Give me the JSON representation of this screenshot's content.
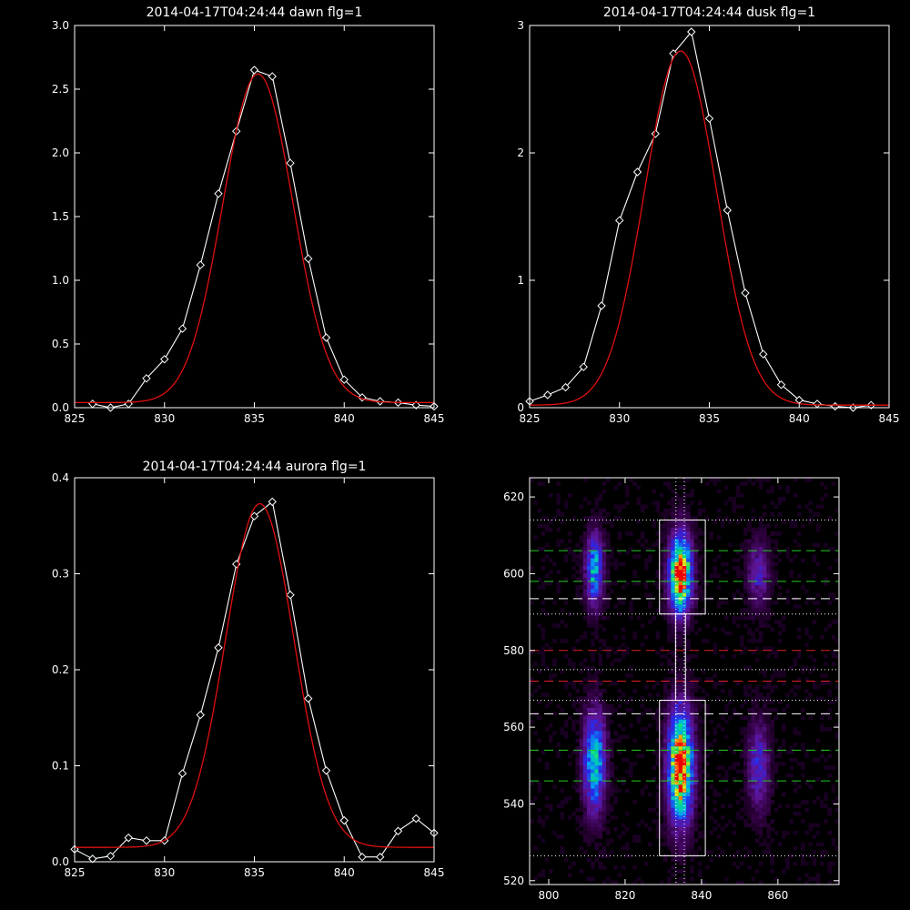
{
  "chart_data": [
    {
      "panel": "dawn",
      "type": "line",
      "title": "2014-04-17T04:24:44 dawn flg=1",
      "xlim": [
        825,
        845
      ],
      "ylim": [
        0,
        3.0
      ],
      "x_ticks": [
        825,
        830,
        835,
        840,
        845
      ],
      "x_tick_labels": [
        "825",
        "830",
        "835",
        "840",
        "845"
      ],
      "y_ticks": [
        0,
        0.5,
        1.0,
        1.5,
        2.0,
        2.5,
        3.0
      ],
      "y_tick_labels": [
        "0.0",
        "0.5",
        "1.0",
        "1.5",
        "2.0",
        "2.5",
        "3.0"
      ],
      "series": [
        {
          "style": "observed",
          "color": "#ffffff",
          "marker": "diamond",
          "x": [
            826,
            827,
            828,
            829,
            830,
            831,
            832,
            833,
            834,
            835,
            836,
            837,
            838,
            839,
            840,
            841,
            842,
            843,
            844,
            845
          ],
          "y": [
            0.03,
            0.0,
            0.03,
            0.23,
            0.38,
            0.62,
            1.12,
            1.68,
            2.17,
            2.65,
            2.6,
            1.92,
            1.17,
            0.55,
            0.22,
            0.08,
            0.05,
            0.04,
            0.02,
            0.01
          ]
        },
        {
          "style": "gaussian-fit",
          "color": "#e01010",
          "amplitude": 2.58,
          "center": 835.2,
          "sigma": 1.95,
          "offset": 0.04
        }
      ]
    },
    {
      "panel": "dusk",
      "type": "line",
      "title": "2014-04-17T04:24:44 dusk flg=1",
      "xlim": [
        825,
        845
      ],
      "ylim": [
        0,
        3
      ],
      "x_ticks": [
        825,
        830,
        835,
        840,
        845
      ],
      "x_tick_labels": [
        "825",
        "830",
        "835",
        "840",
        "845"
      ],
      "y_ticks": [
        0,
        1,
        2,
        3
      ],
      "y_tick_labels": [
        "0",
        "1",
        "2",
        "3"
      ],
      "series": [
        {
          "style": "observed",
          "color": "#ffffff",
          "marker": "diamond",
          "x": [
            825,
            826,
            827,
            828,
            829,
            830,
            831,
            832,
            833,
            834,
            835,
            836,
            837,
            838,
            839,
            840,
            841,
            842,
            843,
            844
          ],
          "y": [
            0.05,
            0.1,
            0.16,
            0.32,
            0.8,
            1.47,
            1.85,
            2.15,
            2.78,
            2.95,
            2.27,
            1.55,
            0.9,
            0.42,
            0.18,
            0.06,
            0.03,
            0.01,
            0.0,
            0.02
          ]
        },
        {
          "style": "gaussian-fit",
          "color": "#e01010",
          "amplitude": 2.78,
          "center": 833.4,
          "sigma": 2.0,
          "offset": 0.02
        }
      ]
    },
    {
      "panel": "aurora",
      "type": "line",
      "title": "2014-04-17T04:24:44 aurora flg=1",
      "xlim": [
        825,
        845
      ],
      "ylim": [
        0,
        0.4
      ],
      "x_ticks": [
        825,
        830,
        835,
        840,
        845
      ],
      "x_tick_labels": [
        "825",
        "830",
        "835",
        "840",
        "845"
      ],
      "y_ticks": [
        0,
        0.1,
        0.2,
        0.3,
        0.4
      ],
      "y_tick_labels": [
        "0.0",
        "0.1",
        "0.2",
        "0.3",
        "0.4"
      ],
      "series": [
        {
          "style": "observed",
          "color": "#ffffff",
          "marker": "diamond",
          "x": [
            825,
            826,
            827,
            828,
            829,
            830,
            831,
            832,
            833,
            834,
            835,
            836,
            837,
            838,
            839,
            840,
            841,
            842,
            843,
            844,
            845
          ],
          "y": [
            0.013,
            0.003,
            0.006,
            0.025,
            0.022,
            0.022,
            0.092,
            0.153,
            0.223,
            0.31,
            0.36,
            0.375,
            0.278,
            0.17,
            0.095,
            0.043,
            0.005,
            0.005,
            0.032,
            0.045,
            0.03
          ]
        },
        {
          "style": "gaussian-fit",
          "color": "#e01010",
          "amplitude": 0.358,
          "center": 835.3,
          "sigma": 1.9,
          "offset": 0.015
        }
      ]
    },
    {
      "panel": "image",
      "type": "heatmap",
      "title": "",
      "xlim": [
        795,
        876
      ],
      "ylim": [
        519,
        625
      ],
      "x_ticks": [
        800,
        820,
        840,
        860
      ],
      "x_tick_labels": [
        "800",
        "820",
        "840",
        "860"
      ],
      "y_ticks": [
        520,
        540,
        560,
        580,
        600,
        620
      ],
      "y_tick_labels": [
        "520",
        "540",
        "560",
        "580",
        "600",
        "620"
      ],
      "blobs": [
        {
          "x": 812,
          "y": 601,
          "sx": 1.6,
          "sy": 6.5,
          "amp": 0.55
        },
        {
          "x": 812,
          "y": 551,
          "sx": 2.0,
          "sy": 9.0,
          "amp": 0.6
        },
        {
          "x": 834.5,
          "y": 600,
          "sx": 2.0,
          "sy": 7.0,
          "amp": 1.0
        },
        {
          "x": 834.5,
          "y": 550,
          "sx": 2.2,
          "sy": 10.0,
          "amp": 1.0
        },
        {
          "x": 855,
          "y": 600,
          "sx": 2.0,
          "sy": 6.0,
          "amp": 0.28
        },
        {
          "x": 855,
          "y": 550,
          "sx": 2.0,
          "sy": 8.0,
          "amp": 0.32
        }
      ],
      "boxes": [
        {
          "x0": 829,
          "x1": 841,
          "y0": 589.5,
          "y1": 614
        },
        {
          "x0": 829,
          "x1": 841,
          "y0": 526.5,
          "y1": 567
        },
        {
          "x0": 833.2,
          "x1": 835.8,
          "y0": 567,
          "y1": 589.5
        }
      ],
      "vlines_dotted": [
        833.3,
        835.5
      ],
      "hlines": [
        {
          "y": 614,
          "style": "dotted",
          "color": "#ffffff"
        },
        {
          "y": 606,
          "style": "dashed",
          "color": "#22cc22"
        },
        {
          "y": 598,
          "style": "dashed",
          "color": "#22cc22"
        },
        {
          "y": 593.5,
          "style": "dashed",
          "color": "#ffffff"
        },
        {
          "y": 589.5,
          "style": "dotted",
          "color": "#ffffff"
        },
        {
          "y": 580,
          "style": "dashed",
          "color": "#dd2020"
        },
        {
          "y": 575,
          "style": "dotted",
          "color": "#ffffff"
        },
        {
          "y": 572,
          "style": "dashed",
          "color": "#dd2020"
        },
        {
          "y": 567,
          "style": "dotted",
          "color": "#ffffff"
        },
        {
          "y": 563.5,
          "style": "dashed",
          "color": "#ffffff"
        },
        {
          "y": 554,
          "style": "dashed",
          "color": "#22cc22"
        },
        {
          "y": 546,
          "style": "dashed",
          "color": "#22cc22"
        },
        {
          "y": 526.5,
          "style": "dotted",
          "color": "#ffffff"
        }
      ]
    }
  ]
}
